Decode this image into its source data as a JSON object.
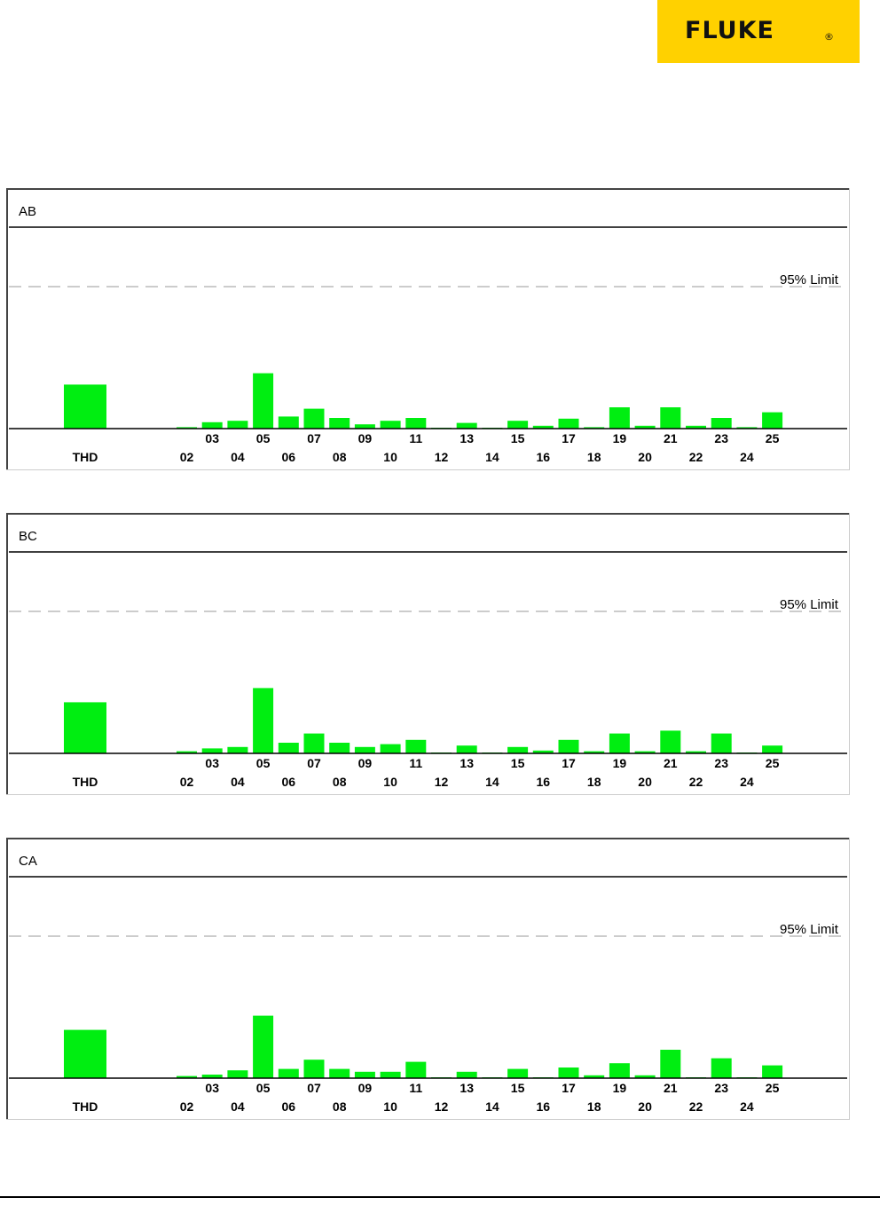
{
  "brand": {
    "name": "FLUKE",
    "mark": "®",
    "color": "#ffd100"
  },
  "colors": {
    "bar": "#00ee11",
    "limit_line": "#999999",
    "frame": "#000000"
  },
  "chart_data": [
    {
      "type": "bar",
      "title": "AB",
      "limit_label": "95% Limit",
      "limit_value": 100,
      "ylim": [
        0,
        100
      ],
      "thd_label": "THD",
      "thd_value": 31,
      "categories": [
        "02",
        "03",
        "04",
        "05",
        "06",
        "07",
        "08",
        "09",
        "10",
        "11",
        "12",
        "13",
        "14",
        "15",
        "16",
        "17",
        "18",
        "19",
        "20",
        "21",
        "22",
        "23",
        "24",
        "25"
      ],
      "values": [
        1,
        4.5,
        5.5,
        39,
        8.5,
        14,
        7.5,
        3,
        5.5,
        7.5,
        0.5,
        4,
        0.5,
        5.5,
        2,
        7,
        1,
        15,
        2,
        15,
        2,
        7.5,
        1,
        11.5
      ]
    },
    {
      "type": "bar",
      "title": "BC",
      "limit_label": "95% Limit",
      "limit_value": 100,
      "ylim": [
        0,
        100
      ],
      "thd_label": "THD",
      "thd_value": 36,
      "categories": [
        "02",
        "03",
        "04",
        "05",
        "06",
        "07",
        "08",
        "09",
        "10",
        "11",
        "12",
        "13",
        "14",
        "15",
        "16",
        "17",
        "18",
        "19",
        "20",
        "21",
        "22",
        "23",
        "24",
        "25"
      ],
      "values": [
        1.5,
        3.5,
        4.5,
        46,
        7.5,
        14,
        7.5,
        4.5,
        6.5,
        9.5,
        0.5,
        5.5,
        0.5,
        4.5,
        2,
        9.5,
        1.5,
        14,
        1.5,
        16,
        1.5,
        14,
        0.5,
        5.5
      ]
    },
    {
      "type": "bar",
      "title": "CA",
      "limit_label": "95% Limit",
      "limit_value": 100,
      "ylim": [
        0,
        100
      ],
      "thd_label": "THD",
      "thd_value": 34,
      "categories": [
        "02",
        "03",
        "04",
        "05",
        "06",
        "07",
        "08",
        "09",
        "10",
        "11",
        "12",
        "13",
        "14",
        "15",
        "16",
        "17",
        "18",
        "19",
        "20",
        "21",
        "22",
        "23",
        "24",
        "25"
      ],
      "values": [
        1.5,
        2.5,
        5.5,
        44,
        6.5,
        13,
        6.5,
        4.5,
        4.5,
        11.5,
        0.5,
        4.5,
        0.5,
        6.5,
        0.5,
        7.5,
        2,
        10.5,
        2,
        20,
        0.5,
        14,
        0.5,
        9
      ]
    }
  ]
}
